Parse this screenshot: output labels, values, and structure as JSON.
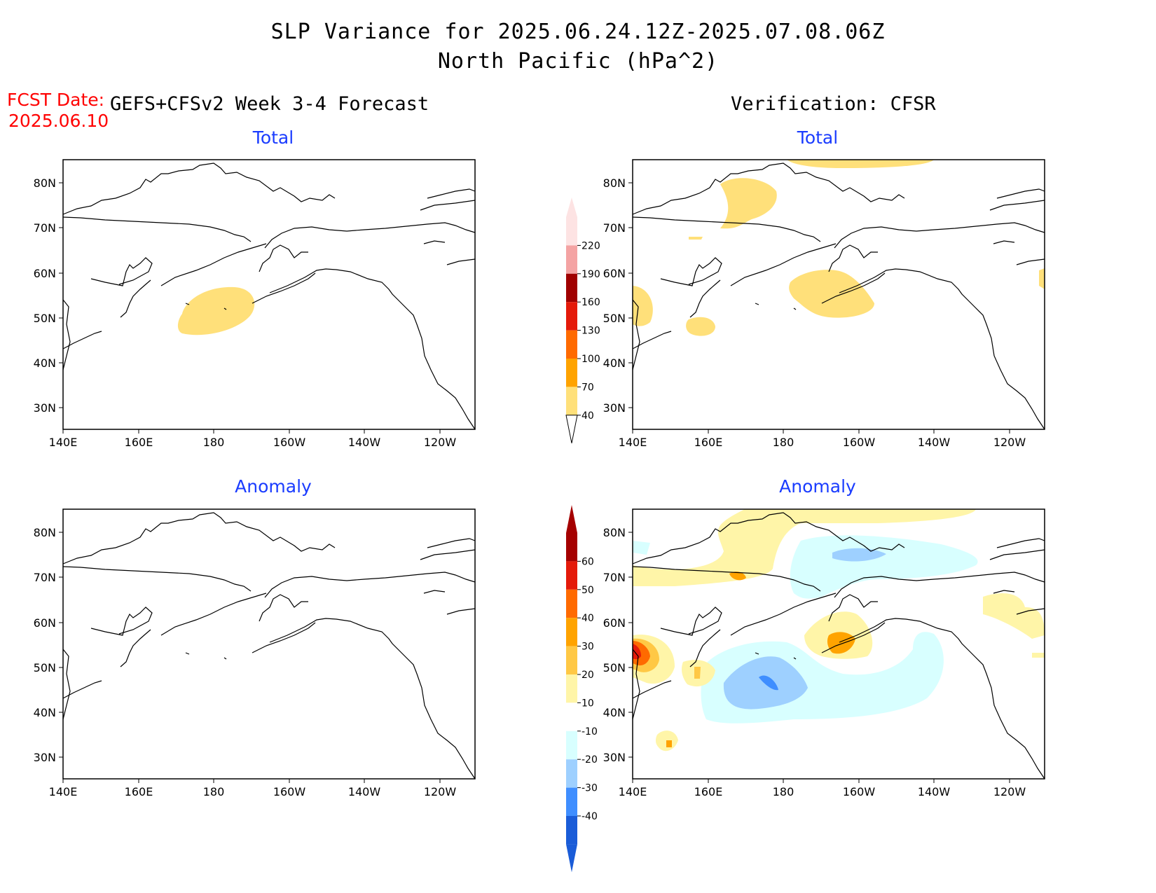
{
  "title": {
    "line1": "SLP Variance for 2025.06.24.12Z-2025.07.08.06Z",
    "line2": "North Pacific (hPa^2)"
  },
  "fcst": {
    "label": "FCST Date:",
    "date": "2025.06.10"
  },
  "forecast_header": "GEFS+CFSv2 Week 3-4 Forecast",
  "verification_header": "Verification: CFSR",
  "panels": {
    "fc_total": {
      "title": "Total"
    },
    "ver_total": {
      "title": "Total"
    },
    "fc_anom": {
      "title": "Anomaly"
    },
    "ver_anom": {
      "title": "Anomaly"
    }
  },
  "axes": {
    "lat_labels": [
      "80N",
      "70N",
      "60N",
      "50N",
      "40N",
      "30N"
    ],
    "lon_labels": [
      "140E",
      "160E",
      "180",
      "160W",
      "140W",
      "120W"
    ]
  },
  "colorbars": {
    "total": {
      "labels": [
        "220",
        "190",
        "160",
        "130",
        "100",
        "70",
        "40"
      ],
      "colors": [
        "#fde3e3",
        "#f4a3a3",
        "#a00000",
        "#e41a0a",
        "#ff6a00",
        "#ffa300",
        "#ffe07a"
      ]
    },
    "anomaly": {
      "labels": [
        "60",
        "50",
        "40",
        "30",
        "20",
        "10",
        "-10",
        "-20",
        "-30",
        "-40"
      ],
      "colors": [
        "#a50000",
        "#e41a0a",
        "#ff6a00",
        "#ffa300",
        "#ffc845",
        "#fff5a8",
        "#ffffff",
        "#d8ffff",
        "#9ed0ff",
        "#3f8eff",
        "#1a5cd8"
      ]
    }
  }
}
